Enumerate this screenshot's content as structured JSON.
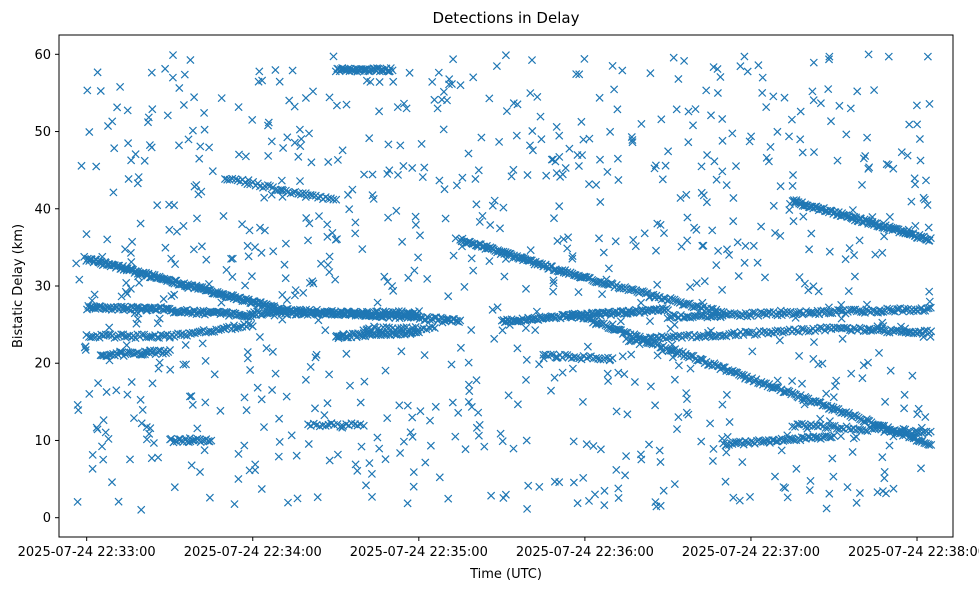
{
  "chart_data": {
    "type": "scatter",
    "title": "Detections in Delay",
    "xlabel": "Time (UTC)",
    "ylabel": "Bistatic Delay (km)",
    "x_type": "time",
    "xlim": [
      "2025-07-24 22:32:50",
      "2025-07-24 22:38:13"
    ],
    "ylim": [
      -2.5,
      62.5
    ],
    "x_ticks": [
      "2025-07-24 22:33:00",
      "2025-07-24 22:34:00",
      "2025-07-24 22:35:00",
      "2025-07-24 22:36:00",
      "2025-07-24 22:37:00",
      "2025-07-24 22:38:00"
    ],
    "x_tick_labels": [
      "2025-07-24 22:33:00",
      "2025-07-24 22:34:00",
      "2025-07-24 22:35:00",
      "2025-07-24 22:36:00",
      "2025-07-24 22:37:00",
      "2025-07-24 22:38:00"
    ],
    "y_ticks": [
      0,
      10,
      20,
      30,
      40,
      50,
      60
    ],
    "y_tick_labels": [
      "0",
      "10",
      "20",
      "30",
      "40",
      "50",
      "60"
    ],
    "grid": false,
    "marker": "x",
    "color": "#1f77b4",
    "series": [
      {
        "tracks": [
          {
            "t_start": "2025-07-24 22:33:00",
            "t_end": "2025-07-24 22:34:10",
            "y_start": 33.5,
            "y_end": 27.0,
            "n": 180
          },
          {
            "t_start": "2025-07-24 22:34:10",
            "t_end": "2025-07-24 22:35:15",
            "y_start": 27.0,
            "y_end": 25.5,
            "n": 120
          },
          {
            "t_start": "2025-07-24 22:33:00",
            "t_end": "2025-07-24 22:33:30",
            "y_start": 27.2,
            "y_end": 27.0,
            "n": 60
          },
          {
            "t_start": "2025-07-24 22:33:30",
            "t_end": "2025-07-24 22:34:00",
            "y_start": 26.8,
            "y_end": 26.2,
            "n": 60
          },
          {
            "t_start": "2025-07-24 22:34:00",
            "t_end": "2025-07-24 22:35:00",
            "y_start": 26.5,
            "y_end": 26.5,
            "n": 110
          },
          {
            "t_start": "2025-07-24 22:35:30",
            "t_end": "2025-07-24 22:36:30",
            "y_start": 25.5,
            "y_end": 27.0,
            "n": 120
          },
          {
            "t_start": "2025-07-24 22:36:30",
            "t_end": "2025-07-24 22:38:05",
            "y_start": 26.0,
            "y_end": 27.0,
            "n": 140
          },
          {
            "t_start": "2025-07-24 22:33:00",
            "t_end": "2025-07-24 22:33:30",
            "y_start": 23.5,
            "y_end": 23.5,
            "n": 40
          },
          {
            "t_start": "2025-07-24 22:33:30",
            "t_end": "2025-07-24 22:34:00",
            "y_start": 23.5,
            "y_end": 25.0,
            "n": 40
          },
          {
            "t_start": "2025-07-24 22:34:30",
            "t_end": "2025-07-24 22:35:00",
            "y_start": 23.5,
            "y_end": 24.0,
            "n": 60
          },
          {
            "t_start": "2025-07-24 22:36:15",
            "t_end": "2025-07-24 22:37:30",
            "y_start": 23.0,
            "y_end": 24.5,
            "n": 90
          },
          {
            "t_start": "2025-07-24 22:37:30",
            "t_end": "2025-07-24 22:38:05",
            "y_start": 24.5,
            "y_end": 24.0,
            "n": 50
          },
          {
            "t_start": "2025-07-24 22:33:05",
            "t_end": "2025-07-24 22:33:30",
            "y_start": 21.0,
            "y_end": 21.5,
            "n": 40
          },
          {
            "t_start": "2025-07-24 22:35:15",
            "t_end": "2025-07-24 22:36:00",
            "y_start": 36.0,
            "y_end": 31.0,
            "n": 100
          },
          {
            "t_start": "2025-07-24 22:36:00",
            "t_end": "2025-07-24 22:36:50",
            "y_start": 31.0,
            "y_end": 26.5,
            "n": 80
          },
          {
            "t_start": "2025-07-24 22:35:55",
            "t_end": "2025-07-24 22:38:05",
            "y_start": 26.5,
            "y_end": 9.5,
            "n": 230
          },
          {
            "t_start": "2025-07-24 22:37:15",
            "t_end": "2025-07-24 22:38:05",
            "y_start": 41.0,
            "y_end": 36.0,
            "n": 120
          },
          {
            "t_start": "2025-07-24 22:33:50",
            "t_end": "2025-07-24 22:34:30",
            "y_start": 44.0,
            "y_end": 41.0,
            "n": 45
          },
          {
            "t_start": "2025-07-24 22:34:30",
            "t_end": "2025-07-24 22:34:50",
            "y_start": 58.0,
            "y_end": 58.0,
            "n": 45
          },
          {
            "t_start": "2025-07-24 22:33:30",
            "t_end": "2025-07-24 22:33:45",
            "y_start": 10.0,
            "y_end": 10.0,
            "n": 25
          },
          {
            "t_start": "2025-07-24 22:34:20",
            "t_end": "2025-07-24 22:34:40",
            "y_start": 12.0,
            "y_end": 12.0,
            "n": 20
          },
          {
            "t_start": "2025-07-24 22:36:50",
            "t_end": "2025-07-24 22:37:30",
            "y_start": 9.5,
            "y_end": 10.5,
            "n": 60
          },
          {
            "t_start": "2025-07-24 22:37:15",
            "t_end": "2025-07-24 22:38:05",
            "y_start": 12.0,
            "y_end": 11.0,
            "n": 60
          },
          {
            "t_start": "2025-07-24 22:35:45",
            "t_end": "2025-07-24 22:36:10",
            "y_start": 21.0,
            "y_end": 20.5,
            "n": 30
          },
          {
            "t_start": "2025-07-24 22:34:40",
            "t_end": "2025-07-24 22:35:05",
            "y_start": 24.5,
            "y_end": 24.5,
            "n": 25
          }
        ],
        "clutter": {
          "t_start": "2025-07-24 22:32:55",
          "t_end": "2025-07-24 22:38:05",
          "y_min": 1.0,
          "y_max": 60.0,
          "n": 900
        }
      }
    ]
  }
}
